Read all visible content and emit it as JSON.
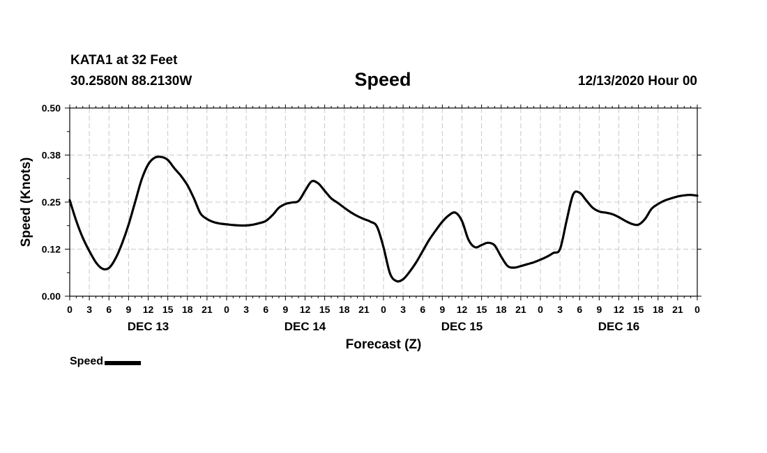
{
  "header": {
    "station": "KATA1 at 32 Feet",
    "coords": "30.2580N 88.2130W",
    "title": "Speed",
    "datetime": "12/13/2020 Hour 00"
  },
  "legend": {
    "label": "Speed"
  },
  "chart_data": {
    "type": "line",
    "title": "Speed",
    "xlabel": "Forecast (Z)",
    "ylabel": "Speed (Knots)",
    "ylim": [
      0,
      0.5
    ],
    "yticks": [
      "0.00",
      "0.12",
      "0.25",
      "0.38",
      "0.50"
    ],
    "xlim": [
      0,
      96
    ],
    "x_tick_step_hours": 3,
    "x_tick_labels": [
      "0",
      "3",
      "6",
      "9",
      "12",
      "15",
      "18",
      "21",
      "0",
      "3",
      "6",
      "9",
      "12",
      "15",
      "18",
      "21",
      "0",
      "3",
      "6",
      "9",
      "12",
      "15",
      "18",
      "21",
      "0",
      "3",
      "6",
      "9",
      "12",
      "15",
      "18",
      "21",
      "0"
    ],
    "day_labels": [
      "DEC 13",
      "DEC 14",
      "DEC 15",
      "DEC 16"
    ],
    "grid": true,
    "legend": "bottom-left",
    "series": [
      {
        "name": "Speed",
        "x": [
          0,
          1,
          2,
          3,
          4,
          5,
          6,
          7,
          8,
          9,
          10,
          11,
          12,
          13,
          14,
          15,
          16,
          17,
          18,
          19,
          20,
          21,
          22,
          23,
          24,
          25,
          26,
          27,
          28,
          29,
          30,
          31,
          32,
          33,
          34,
          35,
          36,
          37,
          38,
          39,
          40,
          41,
          42,
          43,
          44,
          45,
          46,
          47,
          48,
          49,
          50,
          51,
          52,
          53,
          54,
          55,
          56,
          57,
          58,
          59,
          60,
          61,
          62,
          63,
          64,
          65,
          66,
          67,
          68,
          69,
          70,
          71,
          72,
          73,
          74,
          75,
          76,
          77,
          78,
          79,
          80,
          81,
          82,
          83,
          84,
          85,
          86,
          87,
          88,
          89,
          90,
          91,
          92,
          93,
          94,
          95,
          96
        ],
        "values": [
          0.255,
          0.2,
          0.155,
          0.12,
          0.09,
          0.073,
          0.075,
          0.1,
          0.14,
          0.19,
          0.25,
          0.31,
          0.35,
          0.368,
          0.37,
          0.362,
          0.34,
          0.32,
          0.295,
          0.26,
          0.22,
          0.205,
          0.197,
          0.193,
          0.191,
          0.189,
          0.188,
          0.188,
          0.19,
          0.194,
          0.2,
          0.215,
          0.235,
          0.245,
          0.249,
          0.253,
          0.28,
          0.305,
          0.3,
          0.28,
          0.26,
          0.248,
          0.235,
          0.223,
          0.213,
          0.205,
          0.198,
          0.185,
          0.13,
          0.06,
          0.04,
          0.045,
          0.065,
          0.09,
          0.12,
          0.15,
          0.175,
          0.198,
          0.215,
          0.222,
          0.2,
          0.15,
          0.13,
          0.136,
          0.142,
          0.135,
          0.105,
          0.08,
          0.076,
          0.08,
          0.085,
          0.09,
          0.097,
          0.105,
          0.115,
          0.125,
          0.2,
          0.27,
          0.275,
          0.255,
          0.235,
          0.225,
          0.222,
          0.218,
          0.21,
          0.2,
          0.192,
          0.19,
          0.205,
          0.232,
          0.245,
          0.254,
          0.26,
          0.265,
          0.268,
          0.269,
          0.267
        ]
      }
    ]
  }
}
